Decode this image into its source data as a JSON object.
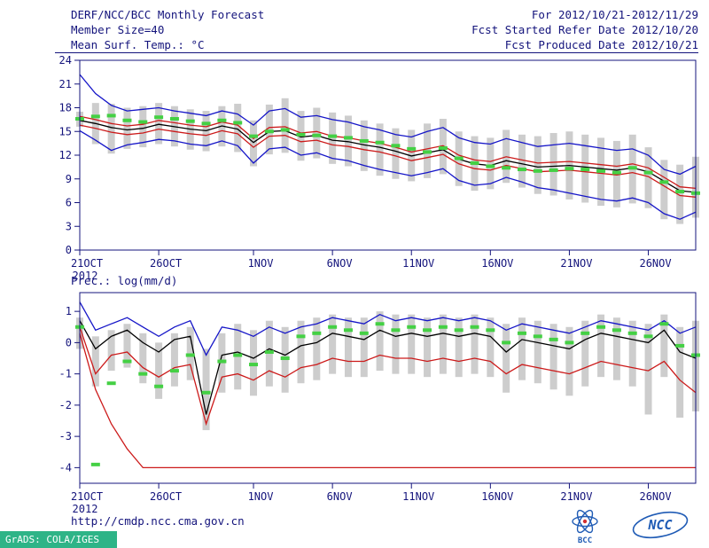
{
  "header": {
    "title": "DERF/NCC/BCC Monthly Forecast",
    "member_size": "Member Size=40",
    "temp_label": "Mean Surf. Temp.: °C",
    "for_range": "For 2012/10/21-2012/11/29",
    "refer_date": "Fcst Started Refer Date 2012/10/20",
    "produced_date": "Fcst Produced Date 2012/10/21"
  },
  "footer": {
    "url": "http://cmdp.ncc.cma.gov.cn",
    "grads": "GrADS: COLA/IGES",
    "bcc_label": "BCC",
    "ncc_label": "NCC"
  },
  "colors": {
    "axis": "#14147c",
    "bar": "#cdcdcd",
    "blue": "#1515c8",
    "red": "#cc1а1a",
    "black": "#000000",
    "green": "#44d044",
    "grads_bg": "#2eb487",
    "logo_blue": "#1f5bb5"
  },
  "chart_data": [
    {
      "type": "line",
      "title": "Mean Surf. Temp.: °C",
      "n_points": 40,
      "ylim": [
        0,
        24
      ],
      "yticks": [
        0,
        3,
        6,
        9,
        12,
        15,
        18,
        21,
        24
      ],
      "x_tick_labels": [
        "21OCT",
        "26OCT",
        "1NOV",
        "6NOV",
        "11NOV",
        "16NOV",
        "21NOV",
        "26NOV"
      ],
      "x_tick_positions": [
        0,
        5,
        11,
        16,
        21,
        26,
        31,
        36
      ],
      "x_sub_label": "2012",
      "series": [
        {
          "name": "ensemble-max",
          "color": "#1515c8",
          "values": [
            22.2,
            19.8,
            18.3,
            17.6,
            17.8,
            18.0,
            17.6,
            17.3,
            17.0,
            17.6,
            17.2,
            15.8,
            17.6,
            17.9,
            16.8,
            17.0,
            16.5,
            16.2,
            15.6,
            15.2,
            14.6,
            14.3,
            15.0,
            15.5,
            14.2,
            13.6,
            13.4,
            14.1,
            13.6,
            13.1,
            13.3,
            13.5,
            13.2,
            12.9,
            12.6,
            12.8,
            12.0,
            10.2,
            9.6,
            10.6
          ]
        },
        {
          "name": "mean-plus-spread",
          "color": "#cc1a1a",
          "values": [
            16.9,
            16.5,
            16.0,
            15.7,
            15.9,
            16.4,
            16.1,
            15.8,
            15.6,
            16.2,
            15.8,
            14.1,
            15.5,
            15.6,
            14.8,
            15.0,
            14.4,
            14.2,
            13.8,
            13.5,
            13.0,
            12.4,
            12.8,
            13.2,
            12.0,
            11.4,
            11.2,
            11.8,
            11.4,
            11.0,
            11.1,
            11.2,
            11.0,
            10.8,
            10.6,
            10.9,
            10.4,
            9.2,
            8.0,
            7.8
          ]
        },
        {
          "name": "ensemble-mean",
          "color": "#000000",
          "values": [
            16.4,
            16.0,
            15.5,
            15.2,
            15.4,
            15.9,
            15.6,
            15.3,
            15.1,
            15.7,
            15.3,
            13.6,
            15.0,
            15.1,
            14.3,
            14.5,
            13.9,
            13.7,
            13.3,
            13.0,
            12.5,
            11.9,
            12.3,
            12.7,
            11.5,
            10.9,
            10.7,
            11.3,
            10.9,
            10.5,
            10.6,
            10.7,
            10.5,
            10.3,
            10.1,
            10.4,
            9.9,
            8.7,
            7.5,
            7.3
          ]
        },
        {
          "name": "mean-minus-spread",
          "color": "#cc1a1a",
          "values": [
            15.8,
            15.4,
            14.9,
            14.6,
            14.8,
            15.3,
            15.0,
            14.7,
            14.5,
            15.1,
            14.7,
            13.0,
            14.4,
            14.5,
            13.7,
            13.9,
            13.3,
            13.1,
            12.7,
            12.4,
            11.9,
            11.3,
            11.7,
            12.1,
            10.9,
            10.3,
            10.1,
            10.7,
            10.3,
            9.9,
            10.0,
            10.1,
            9.9,
            9.7,
            9.5,
            9.8,
            9.3,
            8.1,
            6.9,
            6.7
          ]
        },
        {
          "name": "ensemble-min",
          "color": "#1515c8",
          "values": [
            15.1,
            13.9,
            12.6,
            13.3,
            13.6,
            14.0,
            13.8,
            13.4,
            13.2,
            13.8,
            13.2,
            11.0,
            12.8,
            13.0,
            12.0,
            12.3,
            11.6,
            11.3,
            10.7,
            10.2,
            9.8,
            9.4,
            9.8,
            10.3,
            8.8,
            8.2,
            8.4,
            9.2,
            8.6,
            7.9,
            7.6,
            7.2,
            6.8,
            6.4,
            6.2,
            6.6,
            6.0,
            4.6,
            3.9,
            4.8
          ]
        }
      ],
      "dashes": {
        "name": "climatology-dash",
        "color": "#44d044",
        "values": [
          16.6,
          16.9,
          17.0,
          16.4,
          16.2,
          16.8,
          16.6,
          16.3,
          16.0,
          16.4,
          16.1,
          14.4,
          15.0,
          15.2,
          14.6,
          14.5,
          14.4,
          14.2,
          13.8,
          13.6,
          13.2,
          12.8,
          12.4,
          12.9,
          11.6,
          11.0,
          10.6,
          10.4,
          10.2,
          10.0,
          10.1,
          10.3,
          10.2,
          10.0,
          9.8,
          10.4,
          9.8,
          8.6,
          7.4,
          7.2
        ]
      },
      "bars": {
        "name": "member-spread",
        "color": "#cdcdcd",
        "high": [
          17.5,
          18.6,
          18.5,
          18.0,
          18.2,
          18.6,
          18.2,
          17.8,
          17.6,
          18.2,
          18.5,
          16.4,
          18.4,
          19.2,
          17.6,
          18.0,
          17.4,
          17.0,
          16.4,
          16.0,
          15.4,
          15.2,
          16.0,
          16.6,
          15.0,
          14.4,
          14.2,
          15.2,
          14.6,
          14.4,
          14.8,
          15.0,
          14.6,
          14.2,
          13.8,
          14.6,
          13.0,
          11.4,
          10.8,
          11.8
        ],
        "low": [
          15.6,
          13.4,
          12.2,
          12.8,
          13.0,
          13.4,
          13.1,
          12.7,
          12.5,
          13.1,
          12.4,
          10.6,
          12.1,
          12.3,
          11.3,
          11.6,
          10.9,
          10.6,
          10.0,
          9.4,
          9.0,
          8.7,
          9.1,
          9.6,
          8.1,
          7.5,
          7.7,
          8.5,
          7.9,
          7.1,
          6.9,
          6.4,
          6.0,
          5.6,
          5.4,
          5.9,
          5.3,
          3.9,
          3.3,
          4.1
        ]
      }
    },
    {
      "type": "line",
      "title": "Prec.: log(mm/d)",
      "n_points": 40,
      "ylim": [
        -4.5,
        1.6
      ],
      "yticks": [
        1,
        0,
        -1,
        -2,
        -3,
        -4
      ],
      "x_tick_labels": [
        "21OCT",
        "26OCT",
        "1NOV",
        "6NOV",
        "11NOV",
        "16NOV",
        "21NOV",
        "26NOV"
      ],
      "x_tick_positions": [
        0,
        5,
        11,
        16,
        21,
        26,
        31,
        36
      ],
      "x_sub_label": "2012",
      "series": [
        {
          "name": "ensemble-max",
          "color": "#1515c8",
          "values": [
            1.3,
            0.4,
            0.6,
            0.8,
            0.5,
            0.2,
            0.5,
            0.7,
            -0.4,
            0.5,
            0.4,
            0.2,
            0.5,
            0.3,
            0.5,
            0.6,
            0.8,
            0.7,
            0.6,
            0.9,
            0.7,
            0.8,
            0.7,
            0.8,
            0.7,
            0.8,
            0.7,
            0.4,
            0.6,
            0.5,
            0.4,
            0.3,
            0.5,
            0.7,
            0.6,
            0.5,
            0.4,
            0.7,
            0.3,
            0.5
          ]
        },
        {
          "name": "ensemble-mean",
          "color": "#000000",
          "values": [
            0.7,
            -0.2,
            0.2,
            0.4,
            0.0,
            -0.3,
            0.1,
            0.2,
            -2.3,
            -0.4,
            -0.3,
            -0.5,
            -0.2,
            -0.4,
            -0.1,
            0.0,
            0.3,
            0.2,
            0.1,
            0.4,
            0.2,
            0.3,
            0.2,
            0.3,
            0.2,
            0.3,
            0.2,
            -0.3,
            0.1,
            0.0,
            -0.1,
            -0.2,
            0.1,
            0.3,
            0.2,
            0.1,
            0.0,
            0.4,
            -0.3,
            -0.5
          ]
        },
        {
          "name": "ensemble-median",
          "color": "#cc1a1a",
          "values": [
            0.5,
            -1.0,
            -0.4,
            -0.3,
            -0.8,
            -1.1,
            -0.8,
            -0.7,
            -2.6,
            -1.1,
            -1.0,
            -1.2,
            -0.9,
            -1.1,
            -0.8,
            -0.7,
            -0.5,
            -0.6,
            -0.6,
            -0.4,
            -0.5,
            -0.5,
            -0.6,
            -0.5,
            -0.6,
            -0.5,
            -0.6,
            -1.0,
            -0.7,
            -0.8,
            -0.9,
            -1.0,
            -0.8,
            -0.6,
            -0.7,
            -0.8,
            -0.9,
            -0.6,
            -1.2,
            -1.6
          ]
        },
        {
          "name": "ensemble-min",
          "color": "#cc1a1a",
          "values": [
            0.3,
            -1.5,
            -2.6,
            -3.4,
            -4.0,
            -4.0,
            -4.0,
            -4.0,
            -4.0,
            -4.0,
            -4.0,
            -4.0,
            -4.0,
            -4.0,
            -4.0,
            -4.0,
            -4.0,
            -4.0,
            -4.0,
            -4.0,
            -4.0,
            -4.0,
            -4.0,
            -4.0,
            -4.0,
            -4.0,
            -4.0,
            -4.0,
            -4.0,
            -4.0,
            -4.0,
            -4.0,
            -4.0,
            -4.0,
            -4.0,
            -4.0,
            -4.0,
            -4.0,
            -4.0,
            -4.0
          ]
        }
      ],
      "dashes": {
        "name": "climatology-dash",
        "color": "#44d044",
        "values": [
          0.5,
          -3.9,
          -1.3,
          -0.6,
          -1.0,
          -1.4,
          -0.9,
          -0.4,
          -1.6,
          -0.6,
          -0.4,
          -0.7,
          -0.3,
          -0.5,
          0.2,
          0.3,
          0.5,
          0.4,
          0.3,
          0.6,
          0.4,
          0.5,
          0.4,
          0.5,
          0.4,
          0.5,
          0.4,
          0.0,
          0.3,
          0.2,
          0.1,
          0.0,
          0.3,
          0.5,
          0.4,
          0.3,
          0.2,
          0.6,
          -0.1,
          -0.4
        ]
      },
      "bars": {
        "name": "member-spread",
        "color": "#cdcdcd",
        "high": [
          0.8,
          0.2,
          0.4,
          0.6,
          0.3,
          0.0,
          0.3,
          0.5,
          -0.2,
          0.3,
          0.6,
          0.4,
          0.7,
          0.5,
          0.7,
          0.8,
          0.9,
          0.8,
          0.8,
          1.0,
          0.9,
          0.9,
          0.8,
          0.9,
          0.8,
          0.9,
          0.8,
          0.6,
          0.8,
          0.7,
          0.6,
          0.5,
          0.7,
          0.9,
          0.8,
          0.7,
          0.6,
          0.9,
          0.5,
          0.7
        ],
        "low": [
          -0.2,
          -1.4,
          -0.9,
          -0.8,
          -1.3,
          -1.8,
          -1.4,
          -1.2,
          -2.8,
          -1.6,
          -1.5,
          -1.7,
          -1.4,
          -1.6,
          -1.3,
          -1.2,
          -1.0,
          -1.1,
          -1.1,
          -0.9,
          -1.0,
          -1.0,
          -1.1,
          -1.0,
          -1.1,
          -1.0,
          -1.1,
          -1.6,
          -1.2,
          -1.3,
          -1.5,
          -1.7,
          -1.4,
          -1.1,
          -1.2,
          -1.4,
          -2.3,
          -1.1,
          -2.4,
          -2.2
        ]
      }
    }
  ]
}
